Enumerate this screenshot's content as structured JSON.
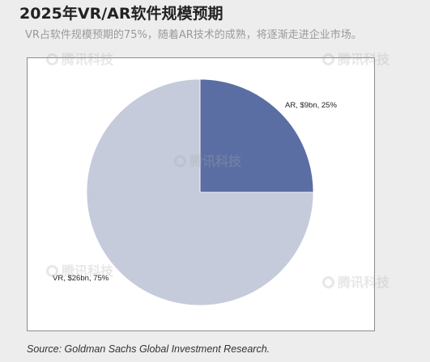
{
  "header": {
    "title": "2025年VR/AR软件规模预期",
    "subtitle": "VR占软件规模预期的75%，随着AR技术的成熟，将逐渐走进企业市场。"
  },
  "chart_data": {
    "type": "pie",
    "title": "",
    "slices": [
      {
        "label": "AR, $9bn, 25%",
        "name": "AR",
        "value": 9,
        "percent": 25,
        "color": "#5a6ea3"
      },
      {
        "label": "VR, $26bn, 75%",
        "name": "VR",
        "value": 26,
        "percent": 75,
        "color": "#c5cbdb"
      }
    ],
    "start_angle": "12 o'clock",
    "direction": "clockwise",
    "legend": "none"
  },
  "footer": {
    "source": "Source: Goldman Sachs Global Investment Research."
  },
  "watermark": {
    "text": "腾讯科技",
    "color": "#aaaaaa"
  }
}
